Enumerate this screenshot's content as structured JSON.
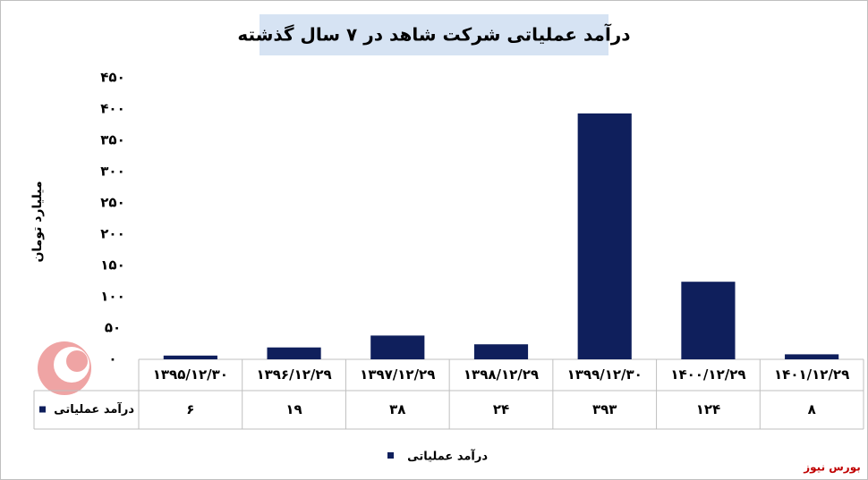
{
  "chart_data": {
    "type": "bar",
    "title": "درآمد عملیاتی شرکت شاهد در ۷ سال گذشته",
    "y_label": "میلیارد تومان",
    "source": "بورس نیوز",
    "categories": [
      "۱۳۹۵/۱۲/۳۰",
      "۱۳۹۶/۱۲/۲۹",
      "۱۳۹۷/۱۲/۲۹",
      "۱۳۹۸/۱۲/۲۹",
      "۱۳۹۹/۱۲/۳۰",
      "۱۴۰۰/۱۲/۲۹",
      "۱۴۰۱/۱۲/۲۹"
    ],
    "series": [
      {
        "name": "درآمد عملیاتی",
        "color": "#0f1f5c",
        "values": [
          6,
          19,
          38,
          24,
          393,
          124,
          8
        ],
        "value_labels": [
          "۶",
          "۱۹",
          "۳۸",
          "۲۴",
          "۳۹۳",
          "۱۲۴",
          "۸"
        ]
      }
    ],
    "ylim": [
      0,
      450
    ],
    "yticks": [
      {
        "value": 0,
        "label": "۰"
      },
      {
        "value": 50,
        "label": "۵۰"
      },
      {
        "value": 100,
        "label": "۱۰۰"
      },
      {
        "value": 150,
        "label": "۱۵۰"
      },
      {
        "value": 200,
        "label": "۲۰۰"
      },
      {
        "value": 250,
        "label": "۲۵۰"
      },
      {
        "value": 300,
        "label": "۳۰۰"
      },
      {
        "value": 350,
        "label": "۳۵۰"
      },
      {
        "value": 400,
        "label": "۴۰۰"
      },
      {
        "value": 450,
        "label": "۴۵۰"
      }
    ],
    "grid": false,
    "legend": "bottom"
  }
}
